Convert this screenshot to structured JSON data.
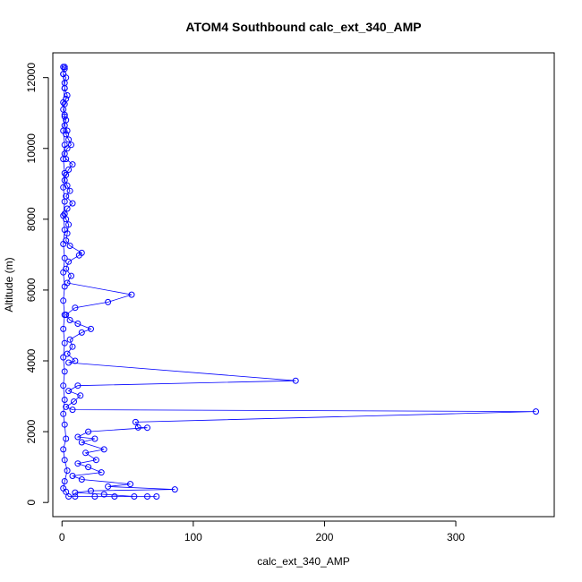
{
  "chart_data": {
    "type": "line",
    "title": "ATOM4 Southbound calc_ext_340_AMP",
    "xlabel": "calc_ext_340_AMP",
    "ylabel": "Altitude (m)",
    "xlim": [
      -7,
      375
    ],
    "ylim": [
      -400,
      12700
    ],
    "xticks": [
      0,
      100,
      200,
      300
    ],
    "yticks": [
      0,
      2000,
      4000,
      6000,
      8000,
      10000,
      12000
    ],
    "grid": false,
    "legend": "none",
    "series_color": "#0000ff",
    "marker": "open-circle",
    "series": [
      {
        "values": [
          [
            1,
            12300
          ],
          [
            2,
            12250
          ],
          [
            1,
            12100
          ],
          [
            3,
            12000
          ],
          [
            2,
            11850
          ],
          [
            2,
            11700
          ],
          [
            4,
            11500
          ],
          [
            3,
            11400
          ],
          [
            2,
            11250
          ],
          [
            1,
            11100
          ],
          [
            2,
            10950
          ],
          [
            3,
            10800
          ],
          [
            2,
            10650
          ],
          [
            4,
            10500
          ],
          [
            3,
            10400
          ],
          [
            5,
            10250
          ],
          [
            7,
            10100
          ],
          [
            4,
            10000
          ],
          [
            2,
            9850
          ],
          [
            3,
            9700
          ],
          [
            8,
            9550
          ],
          [
            5,
            9400
          ],
          [
            3,
            9250
          ],
          [
            2,
            9100
          ],
          [
            4,
            8950
          ],
          [
            6,
            8800
          ],
          [
            3,
            8650
          ],
          [
            8,
            8450
          ],
          [
            4,
            8300
          ],
          [
            2,
            8150
          ],
          [
            3,
            8000
          ],
          [
            5,
            7850
          ],
          [
            4,
            7600
          ],
          [
            3,
            7400
          ],
          [
            6,
            7250
          ],
          [
            15,
            7050
          ],
          [
            13,
            6980
          ],
          [
            5,
            6800
          ],
          [
            3,
            6600
          ],
          [
            7,
            6400
          ],
          [
            4,
            6200
          ],
          [
            53,
            5870
          ],
          [
            35,
            5660
          ],
          [
            10,
            5500
          ],
          [
            3,
            5300
          ],
          [
            6,
            5150
          ],
          [
            12,
            5050
          ],
          [
            22,
            4900
          ],
          [
            15,
            4800
          ],
          [
            6,
            4600
          ],
          [
            8,
            4400
          ],
          [
            4,
            4200
          ],
          [
            10,
            4000
          ],
          [
            5,
            3950
          ],
          [
            178,
            3440
          ],
          [
            12,
            3300
          ],
          [
            5,
            3150
          ],
          [
            14,
            3020
          ],
          [
            9,
            2850
          ],
          [
            3,
            2700
          ],
          [
            8,
            2620
          ],
          [
            361,
            2570
          ],
          [
            56,
            2270
          ],
          [
            58,
            2120
          ],
          [
            65,
            2110
          ],
          [
            20,
            2000
          ],
          [
            12,
            1850
          ],
          [
            25,
            1800
          ],
          [
            15,
            1700
          ],
          [
            32,
            1500
          ],
          [
            18,
            1400
          ],
          [
            26,
            1200
          ],
          [
            12,
            1100
          ],
          [
            20,
            1000
          ],
          [
            30,
            850
          ],
          [
            8,
            750
          ],
          [
            15,
            650
          ],
          [
            52,
            520
          ],
          [
            35,
            450
          ],
          [
            86,
            370
          ],
          [
            22,
            330
          ],
          [
            10,
            280
          ],
          [
            32,
            230
          ],
          [
            55,
            170
          ],
          [
            65,
            170
          ],
          [
            72,
            170
          ],
          [
            40,
            170
          ],
          [
            25,
            170
          ],
          [
            10,
            170
          ],
          [
            5,
            170
          ],
          [
            3,
            300
          ],
          [
            1,
            400
          ],
          [
            2,
            600
          ],
          [
            4,
            900
          ],
          [
            2,
            1200
          ],
          [
            1,
            1500
          ],
          [
            3,
            1800
          ],
          [
            2,
            2200
          ],
          [
            1,
            2500
          ],
          [
            2,
            2900
          ],
          [
            1,
            3300
          ],
          [
            2,
            3700
          ],
          [
            1,
            4100
          ],
          [
            2,
            4500
          ],
          [
            1,
            4900
          ],
          [
            2,
            5300
          ],
          [
            1,
            5700
          ],
          [
            2,
            6100
          ],
          [
            1,
            6500
          ],
          [
            2,
            6900
          ],
          [
            1,
            7300
          ],
          [
            2,
            7700
          ],
          [
            1,
            8100
          ],
          [
            2,
            8500
          ],
          [
            1,
            8900
          ],
          [
            2,
            9300
          ],
          [
            1,
            9700
          ],
          [
            2,
            10100
          ],
          [
            1,
            10500
          ],
          [
            2,
            10900
          ],
          [
            1,
            11300
          ],
          [
            2,
            11700
          ],
          [
            1,
            12100
          ],
          [
            2,
            12300
          ]
        ]
      }
    ]
  }
}
